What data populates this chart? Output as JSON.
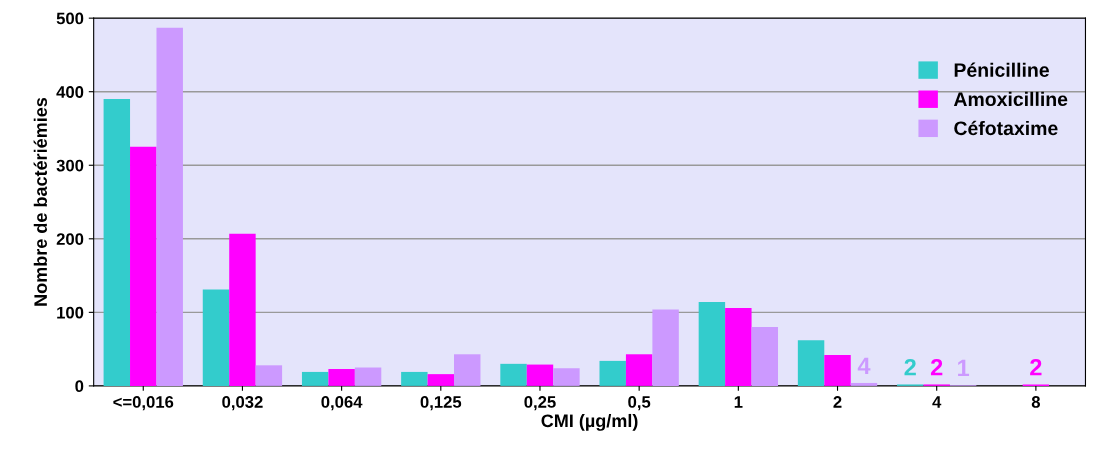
{
  "chart_data": {
    "type": "bar",
    "xlabel": "CMI (µg/ml)",
    "ylabel": "Nombre de bactériémies",
    "categories": [
      "<=0,016",
      "0,032",
      "0,064",
      "0,125",
      "0,25",
      "0,5",
      "1",
      "2",
      "4",
      "8"
    ],
    "series": [
      {
        "name": "Pénicilline",
        "color": "#33cccc",
        "values": [
          390,
          131,
          19,
          19,
          30,
          34,
          114,
          62,
          2,
          null
        ],
        "value_labels": [
          null,
          null,
          null,
          null,
          null,
          null,
          null,
          null,
          "2",
          null
        ]
      },
      {
        "name": "Amoxicilline",
        "color": "#ff00ff",
        "values": [
          325,
          207,
          23,
          16,
          29,
          43,
          106,
          42,
          2,
          2
        ],
        "value_labels": [
          null,
          null,
          null,
          null,
          null,
          null,
          null,
          null,
          "2",
          "2"
        ]
      },
      {
        "name": "Céfotaxime",
        "color": "#cc99ff",
        "values": [
          487,
          28,
          25,
          43,
          24,
          104,
          80,
          4,
          1,
          null
        ],
        "value_labels": [
          null,
          null,
          null,
          null,
          null,
          null,
          null,
          "4",
          "1",
          null
        ]
      }
    ],
    "ylim": [
      0,
      500
    ],
    "yticks": [
      0,
      100,
      200,
      300,
      400,
      500
    ],
    "grid": "y",
    "legend": "top right"
  }
}
